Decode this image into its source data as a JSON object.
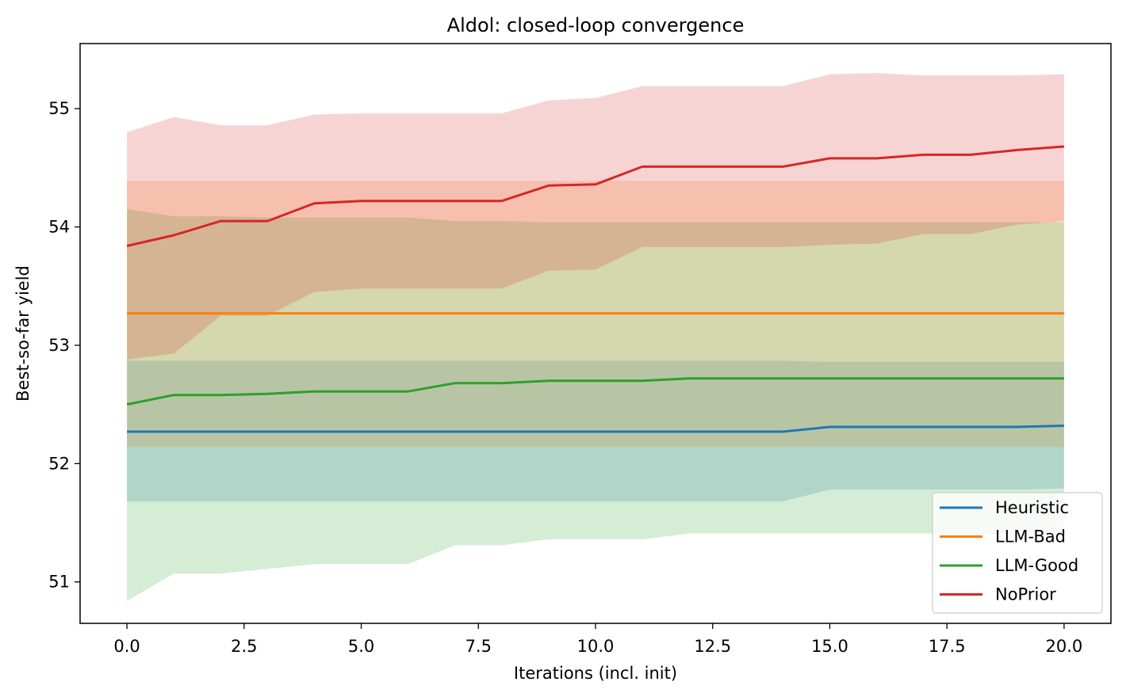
{
  "chart_data": {
    "type": "line",
    "title": "Aldol: closed-loop convergence",
    "xlabel": "Iterations (incl. init)",
    "ylabel": "Best-so-far yield",
    "xlim": [
      -1,
      21
    ],
    "ylim": [
      50.65,
      55.55
    ],
    "xticks": [
      0,
      2.5,
      5,
      7.5,
      10,
      12.5,
      15,
      17.5,
      20
    ],
    "xtick_labels": [
      "0.0",
      "2.5",
      "5.0",
      "7.5",
      "10.0",
      "12.5",
      "15.0",
      "17.5",
      "20.0"
    ],
    "yticks": [
      51,
      52,
      53,
      54,
      55
    ],
    "ytick_labels": [
      "51",
      "52",
      "53",
      "54",
      "55"
    ],
    "grid": false,
    "legend_position": "lower-right",
    "x": [
      0,
      1,
      2,
      3,
      4,
      5,
      6,
      7,
      8,
      9,
      10,
      11,
      12,
      13,
      14,
      15,
      16,
      17,
      18,
      19,
      20
    ],
    "series": [
      {
        "name": "Heuristic",
        "color": "#1f77b4",
        "values": [
          52.27,
          52.27,
          52.27,
          52.27,
          52.27,
          52.27,
          52.27,
          52.27,
          52.27,
          52.27,
          52.27,
          52.27,
          52.27,
          52.27,
          52.27,
          52.31,
          52.31,
          52.31,
          52.31,
          52.31,
          52.32
        ],
        "lower": [
          51.68,
          51.68,
          51.68,
          51.68,
          51.68,
          51.68,
          51.68,
          51.68,
          51.68,
          51.68,
          51.68,
          51.68,
          51.68,
          51.68,
          51.68,
          51.78,
          51.78,
          51.78,
          51.78,
          51.78,
          51.79
        ],
        "upper": [
          52.87,
          52.87,
          52.87,
          52.87,
          52.87,
          52.87,
          52.87,
          52.87,
          52.87,
          52.87,
          52.87,
          52.87,
          52.87,
          52.87,
          52.87,
          52.86,
          52.86,
          52.86,
          52.86,
          52.86,
          52.86
        ]
      },
      {
        "name": "LLM-Bad",
        "color": "#ff7f0e",
        "values": [
          53.27,
          53.27,
          53.27,
          53.27,
          53.27,
          53.27,
          53.27,
          53.27,
          53.27,
          53.27,
          53.27,
          53.27,
          53.27,
          53.27,
          53.27,
          53.27,
          53.27,
          53.27,
          53.27,
          53.27,
          53.27
        ],
        "lower": [
          52.14,
          52.14,
          52.14,
          52.14,
          52.14,
          52.14,
          52.14,
          52.14,
          52.14,
          52.14,
          52.14,
          52.14,
          52.14,
          52.14,
          52.14,
          52.14,
          52.14,
          52.14,
          52.14,
          52.14,
          52.14
        ],
        "upper": [
          54.39,
          54.39,
          54.39,
          54.39,
          54.39,
          54.39,
          54.39,
          54.39,
          54.39,
          54.39,
          54.39,
          54.39,
          54.39,
          54.39,
          54.39,
          54.39,
          54.39,
          54.39,
          54.39,
          54.39,
          54.39
        ]
      },
      {
        "name": "LLM-Good",
        "color": "#2ca02c",
        "values": [
          52.5,
          52.58,
          52.58,
          52.59,
          52.61,
          52.61,
          52.61,
          52.68,
          52.68,
          52.7,
          52.7,
          52.7,
          52.72,
          52.72,
          52.72,
          52.72,
          52.72,
          52.72,
          52.72,
          52.72,
          52.72
        ],
        "lower": [
          50.84,
          51.07,
          51.07,
          51.11,
          51.15,
          51.15,
          51.15,
          51.31,
          51.31,
          51.36,
          51.36,
          51.36,
          51.41,
          51.41,
          51.41,
          51.41,
          51.41,
          51.41,
          51.41,
          51.41,
          51.41
        ],
        "upper": [
          54.15,
          54.09,
          54.09,
          54.08,
          54.08,
          54.08,
          54.08,
          54.05,
          54.05,
          54.04,
          54.04,
          54.04,
          54.04,
          54.04,
          54.04,
          54.04,
          54.04,
          54.04,
          54.04,
          54.04,
          54.04
        ]
      },
      {
        "name": "NoPrior",
        "color": "#d62728",
        "values": [
          53.84,
          53.93,
          54.05,
          54.05,
          54.2,
          54.22,
          54.22,
          54.22,
          54.22,
          54.35,
          54.36,
          54.51,
          54.51,
          54.51,
          54.51,
          54.58,
          54.58,
          54.61,
          54.61,
          54.65,
          54.68
        ],
        "lower": [
          52.88,
          52.93,
          53.25,
          53.25,
          53.45,
          53.48,
          53.48,
          53.48,
          53.48,
          53.63,
          53.64,
          53.83,
          53.83,
          53.83,
          53.83,
          53.85,
          53.86,
          53.94,
          53.94,
          54.02,
          54.05
        ],
        "upper": [
          54.8,
          54.93,
          54.86,
          54.86,
          54.95,
          54.96,
          54.96,
          54.96,
          54.96,
          55.07,
          55.09,
          55.19,
          55.19,
          55.19,
          55.19,
          55.29,
          55.3,
          55.28,
          55.28,
          55.28,
          55.29
        ]
      }
    ]
  }
}
